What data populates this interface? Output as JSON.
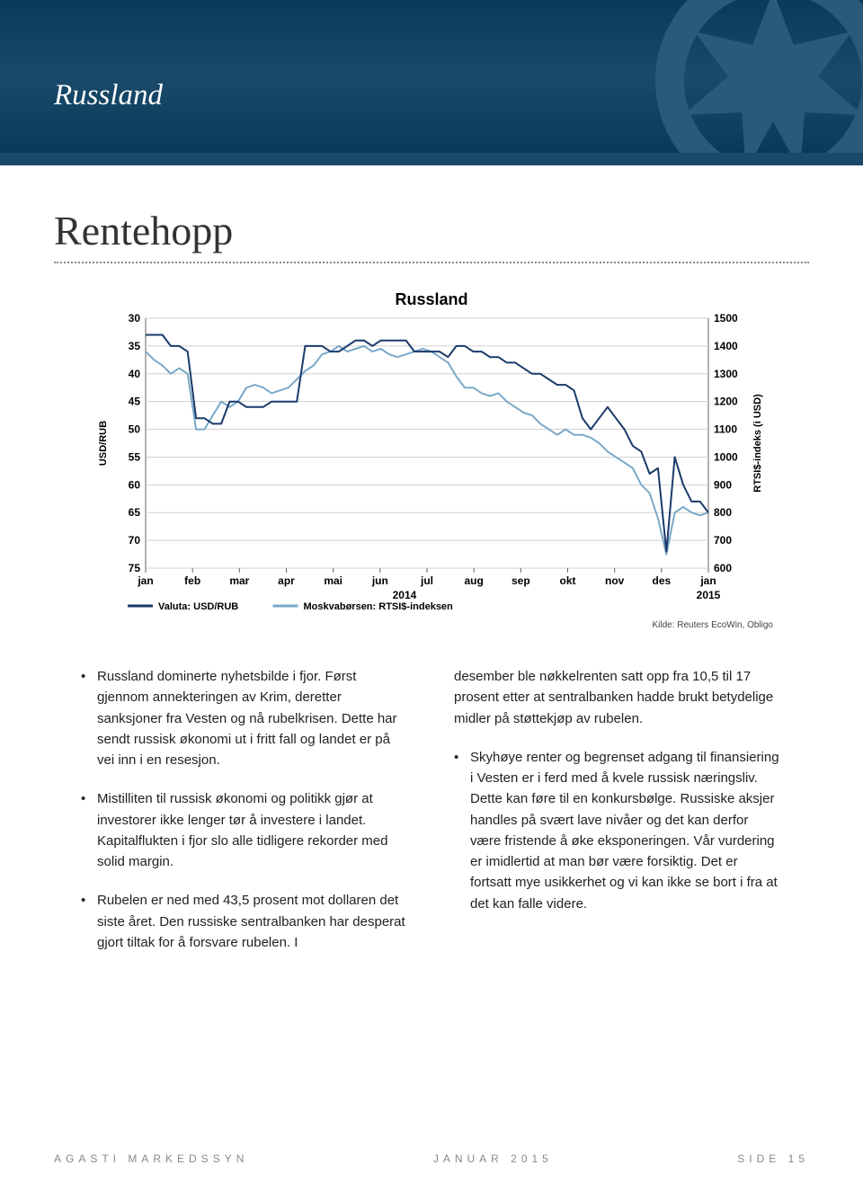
{
  "header": {
    "section": "Russland"
  },
  "main_heading": "Rentehopp",
  "chart": {
    "type": "line",
    "title": "Russland",
    "background_color": "#ffffff",
    "grid_color": "#d0d0d0",
    "series": [
      {
        "name": "Valuta: USD/RUB",
        "color": "#1a3a6a",
        "axis": "left",
        "data": [
          33,
          33,
          33,
          35,
          35,
          36,
          48,
          48,
          49,
          49,
          45,
          45,
          46,
          46,
          46,
          45,
          45,
          45,
          45,
          35,
          35,
          35,
          36,
          36,
          35,
          34,
          34,
          35,
          34,
          34,
          34,
          34,
          36,
          36,
          36,
          36,
          37,
          35,
          35,
          36,
          36,
          37,
          37,
          38,
          38,
          39,
          40,
          40,
          41,
          42,
          42,
          43,
          48,
          50,
          48,
          46,
          48,
          50,
          53,
          54,
          58,
          57,
          72,
          55,
          60,
          63,
          63,
          65
        ]
      },
      {
        "name": "Moskvabørsen: RTSI$-indeksen",
        "color": "#7aa8c8",
        "axis": "right",
        "data": [
          1380,
          1350,
          1330,
          1300,
          1320,
          1300,
          1100,
          1100,
          1150,
          1200,
          1180,
          1200,
          1250,
          1260,
          1250,
          1230,
          1240,
          1250,
          1280,
          1310,
          1330,
          1370,
          1380,
          1400,
          1380,
          1390,
          1400,
          1380,
          1390,
          1370,
          1360,
          1370,
          1380,
          1390,
          1380,
          1360,
          1340,
          1290,
          1250,
          1250,
          1230,
          1220,
          1230,
          1200,
          1180,
          1160,
          1150,
          1120,
          1100,
          1080,
          1100,
          1080,
          1080,
          1070,
          1050,
          1020,
          1000,
          980,
          960,
          900,
          870,
          780,
          650,
          800,
          820,
          800,
          790,
          800
        ]
      }
    ],
    "left_axis": {
      "label": "USD/RUB",
      "min": 30,
      "max": 75,
      "step": 5,
      "inverted": true,
      "label_fontsize": 11
    },
    "right_axis": {
      "label": "RTSI$-indeks (i USD)",
      "min": 600,
      "max": 1500,
      "step": 100,
      "label_fontsize": 11
    },
    "x_labels": [
      "jan",
      "feb",
      "mar",
      "apr",
      "mai",
      "jun",
      "jul",
      "aug",
      "sep",
      "okt",
      "nov",
      "des",
      "jan"
    ],
    "x_year_left": "2014",
    "x_year_right": "2015",
    "legend_items": [
      "Valuta: USD/RUB",
      "Moskvabørsen: RTSI$-indeksen"
    ],
    "source": "Kilde: Reuters EcoWin, Obligo",
    "tick_fontsize": 12,
    "legend_fontsize": 11,
    "line_width": 2
  },
  "bullets": {
    "left": [
      "Russland dominerte nyhetsbilde i fjor. Først gjennom annekteringen av Krim, deretter sanksjoner fra Vesten og nå rubelkrisen. Dette har sendt russisk økonomi ut i fritt fall og landet er på vei inn i en resesjon.",
      "Mistilliten til russisk økonomi og politikk gjør at investorer ikke lenger tør å investere i landet. Kapitalflukten i fjor slo alle tidligere rekorder med solid margin.",
      "Rubelen er ned med 43,5 prosent mot dollaren det siste året. Den russiske sentralbanken har desperat gjort tiltak for å forsvare rubelen. I"
    ],
    "right_continued": "desember ble nøkkelrenten satt opp fra 10,5 til 17 prosent etter at sentralbanken hadde brukt betydelige midler på støttekjøp av rubelen.",
    "right": [
      "Skyhøye renter og begrenset adgang til finansiering i Vesten er i ferd med å kvele russisk næringsliv. Dette kan føre til en konkursbølge. Russiske aksjer handles på svært lave nivåer og det kan derfor være fristende å øke eksponeringen. Vår vurdering er imidlertid at man bør være forsiktig. Det er fortsatt mye usikkerhet og vi kan ikke se bort i fra at det kan falle videre."
    ]
  },
  "footer": {
    "left": "AGASTI MARKEDSSYN",
    "center": "JANUAR 2015",
    "right": "SIDE 15"
  }
}
